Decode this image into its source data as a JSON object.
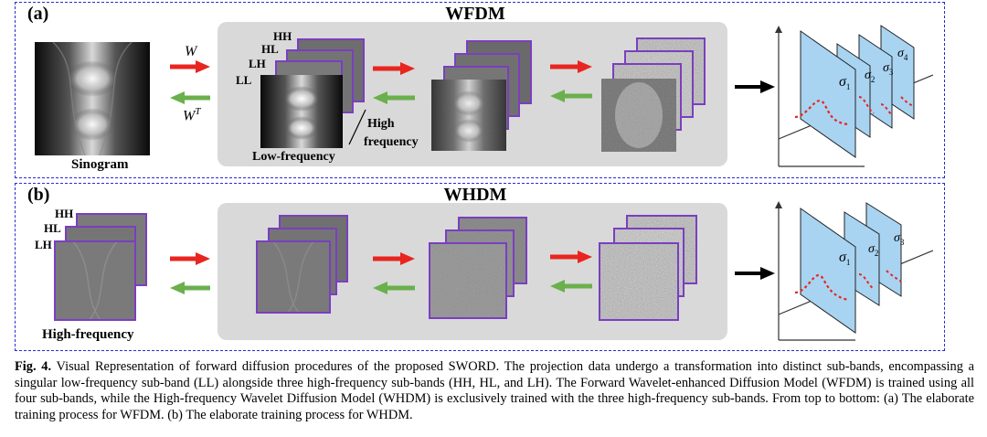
{
  "figure": {
    "panel_a": {
      "label": "(a)",
      "title": "WFDM",
      "sinogram_label": "Sinogram",
      "forward_op": "W",
      "inverse_op": "W",
      "inverse_op_sup": "T",
      "subbands": [
        "HH",
        "HL",
        "LH",
        "LL"
      ],
      "low_freq_label": "Low-frequency",
      "high_freq_label_1": "High",
      "high_freq_label_2": "frequency",
      "sigmas": [
        "σ1",
        "σ2",
        "σ3",
        "σ4"
      ]
    },
    "panel_b": {
      "label": "(b)",
      "title": "WHDM",
      "subbands": [
        "HH",
        "HL",
        "LH"
      ],
      "high_freq_label": "High-frequency",
      "sigmas": [
        "σ1",
        "σ2",
        "σ3"
      ]
    },
    "caption": {
      "prefix": "Fig. 4.",
      "text": "Visual Representation of forward diffusion procedures of the proposed SWORD. The projection data undergo a transformation into distinct sub-bands, encompassing a singular low-frequency sub-band (LL) alongside three high-frequency sub-bands (HH, HL, and LH). The Forward Wavelet-enhanced Diffusion Model (WFDM) is trained using all four sub-bands, while the High-frequency Wavelet Diffusion Model (WHDM) is exclusively trained with the three high-frequency sub-bands. From top to bottom: (a) The elaborate training process for WFDM. (b) The elaborate training process for WHDM."
    },
    "colors": {
      "dashed_border": "#2a2ad8",
      "gray_box": "#d9d9d9",
      "frame_purple": "#7a3fbf",
      "red_arrow": "#e8251f",
      "green_arrow": "#6ab04c",
      "plane_blue": "#a8d4f2"
    }
  }
}
